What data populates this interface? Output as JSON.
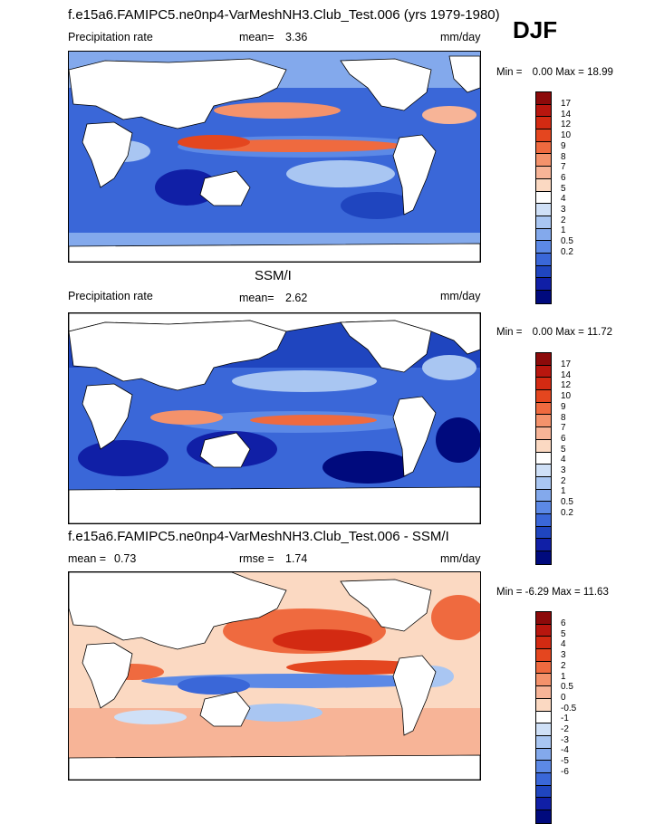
{
  "season": "DJF",
  "panels": [
    {
      "title": "f.e15a6.FAMIPC5.ne0np4-VarMeshNH3.Club_Test.006 (yrs 1979-1980)",
      "left_label": "Precipitation rate",
      "stat_label": "mean=",
      "stat_value": "3.36",
      "units": "mm/day",
      "min_label": "Min =",
      "min_value": "0.00",
      "max_label": "Max =",
      "max_value": "18.99",
      "colorbar_labels": [
        "17",
        "14",
        "12",
        "10",
        "9",
        "8",
        "7",
        "6",
        "5",
        "4",
        "3",
        "2",
        "1",
        "0.5",
        "0.2"
      ],
      "colors": [
        "#8c0a0a",
        "#b8160e",
        "#d32a12",
        "#e4461f",
        "#ef6a3f",
        "#f4926b",
        "#f7b497",
        "#fbd9c2",
        "#ffffff",
        "#cfe0f7",
        "#a9c6f2",
        "#83a9ec",
        "#5c89e6",
        "#3a67d8",
        "#1f45bf",
        "#101fa6",
        "#000a7d"
      ]
    },
    {
      "title": "SSM/I",
      "left_label": "Precipitation rate",
      "stat_label": "mean=",
      "stat_value": "2.62",
      "units": "mm/day",
      "min_label": "Min =",
      "min_value": "0.00",
      "max_label": "Max =",
      "max_value": "11.72",
      "colorbar_labels": [
        "17",
        "14",
        "12",
        "10",
        "9",
        "8",
        "7",
        "6",
        "5",
        "4",
        "3",
        "2",
        "1",
        "0.5",
        "0.2"
      ],
      "colors": [
        "#8c0a0a",
        "#b8160e",
        "#d32a12",
        "#e4461f",
        "#ef6a3f",
        "#f4926b",
        "#f7b497",
        "#fbd9c2",
        "#ffffff",
        "#cfe0f7",
        "#a9c6f2",
        "#83a9ec",
        "#5c89e6",
        "#3a67d8",
        "#1f45bf",
        "#101fa6",
        "#000a7d"
      ]
    },
    {
      "title": "f.e15a6.FAMIPC5.ne0np4-VarMeshNH3.Club_Test.006 - SSM/I",
      "left_label": "",
      "stat_label": "mean =",
      "stat_value": "0.73",
      "rmse_label": "rmse =",
      "rmse_value": "1.74",
      "units": "mm/day",
      "min_label": "Min =",
      "min_value": "-6.29",
      "max_label": "Max =",
      "max_value": "11.63",
      "colorbar_labels": [
        "6",
        "5",
        "4",
        "3",
        "2",
        "1",
        "0.5",
        "0",
        "-0.5",
        "-1",
        "-2",
        "-3",
        "-4",
        "-5",
        "-6"
      ],
      "colors": [
        "#8c0a0a",
        "#b8160e",
        "#d32a12",
        "#e4461f",
        "#ef6a3f",
        "#f4926b",
        "#f7b497",
        "#fbd9c2",
        "#ffffff",
        "#cfe0f7",
        "#a9c6f2",
        "#83a9ec",
        "#5c89e6",
        "#3a67d8",
        "#1f45bf",
        "#101fa6",
        "#000a7d"
      ]
    }
  ]
}
